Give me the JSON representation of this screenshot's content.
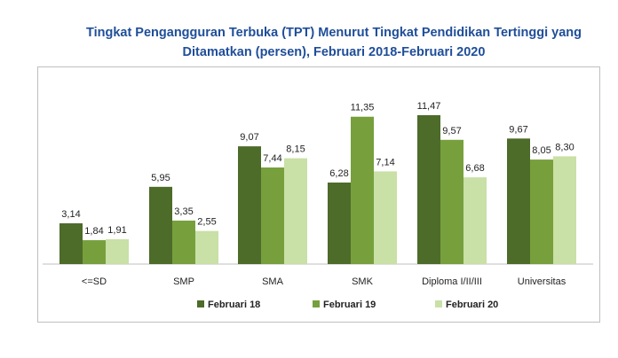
{
  "title": {
    "line1": "Tingkat Pengangguran Terbuka (TPT) Menurut Tingkat Pendidikan Tertinggi yang",
    "line2": "Ditamatkan (persen),  Februari 2018-Februari 2020"
  },
  "colors": {
    "feb18": "#4d6b29",
    "feb19": "#77a03d",
    "feb20": "#c9e0a6",
    "title": "#1f4e99"
  },
  "chart_data": {
    "type": "bar",
    "title": "Tingkat Pengangguran Terbuka (TPT) Menurut Tingkat Pendidikan Tertinggi yang Ditamatkan (persen),  Februari 2018-Februari 2020",
    "categories": [
      "<=SD",
      "SMP",
      "SMA",
      "SMK",
      "Diploma I/II/III",
      "Universitas"
    ],
    "series": [
      {
        "name": "Februari 18",
        "values": [
          3.14,
          5.95,
          9.07,
          6.28,
          11.47,
          9.67
        ],
        "labels": [
          "3,14",
          "5,95",
          "9,07",
          "6,28",
          "11,47",
          "9,67"
        ]
      },
      {
        "name": "Februari 19",
        "values": [
          1.84,
          3.35,
          7.44,
          11.35,
          9.57,
          8.05
        ],
        "labels": [
          "1,84",
          "3,35",
          "7,44",
          "11,35",
          "9,57",
          "8,05"
        ]
      },
      {
        "name": "Februari 20",
        "values": [
          1.91,
          2.55,
          8.15,
          7.14,
          6.68,
          8.3
        ],
        "labels": [
          "1,91",
          "2,55",
          "8,15",
          "7,14",
          "6,68",
          "8,30"
        ]
      }
    ],
    "ylim": [
      0,
      11.47
    ],
    "legend": "bottom",
    "grid": false,
    "xlabel": "",
    "ylabel": ""
  }
}
